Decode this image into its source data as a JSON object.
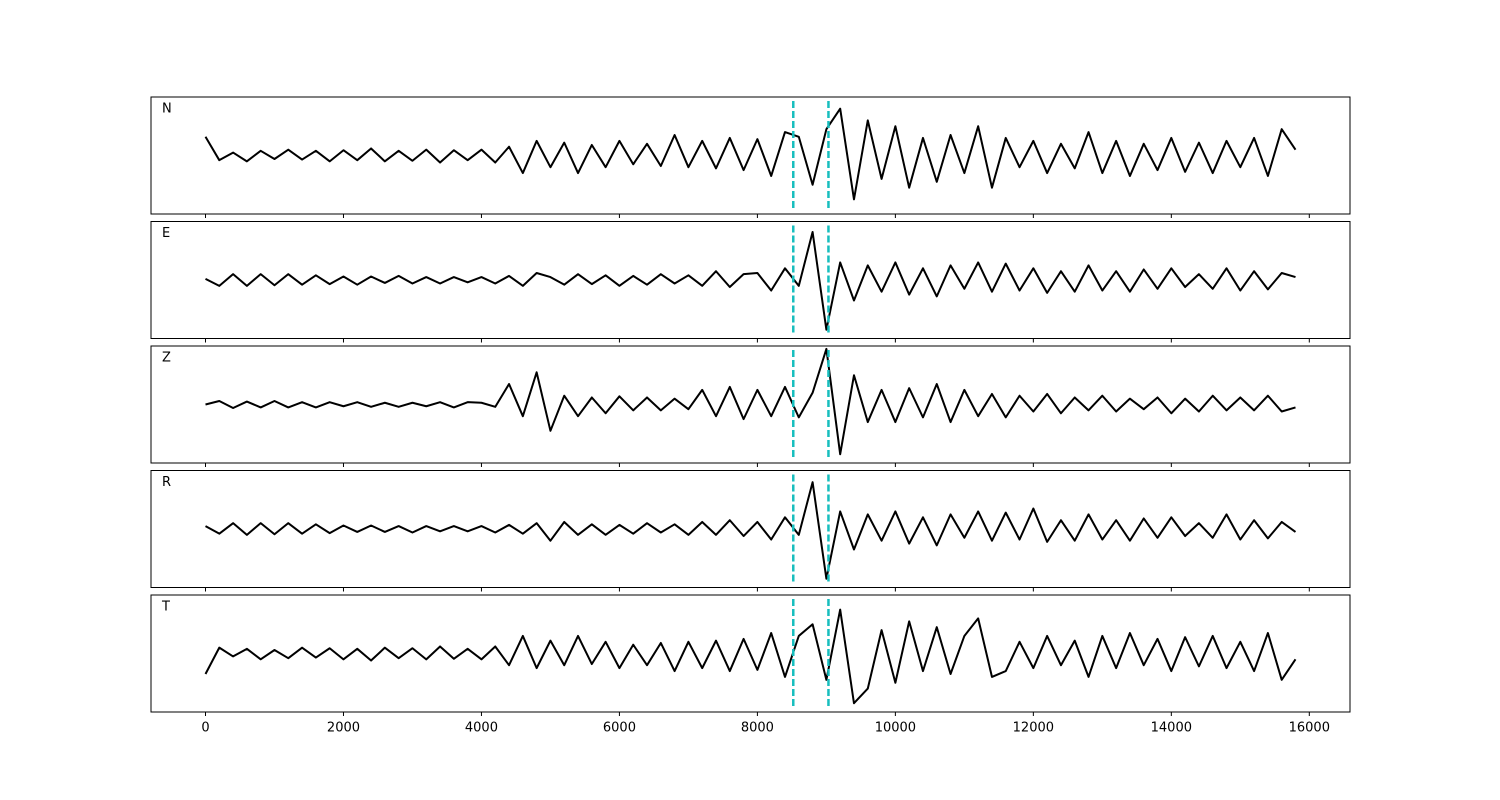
{
  "chart_data": {
    "type": "line",
    "layout": "stacked",
    "x": [
      0,
      200,
      400,
      600,
      800,
      1000,
      1200,
      1400,
      1600,
      1800,
      2000,
      2200,
      2400,
      2600,
      2800,
      3000,
      3200,
      3400,
      3600,
      3800,
      4000,
      4200,
      4400,
      4600,
      4800,
      5000,
      5200,
      5400,
      5600,
      5800,
      6000,
      6200,
      6400,
      6600,
      6800,
      7000,
      7200,
      7400,
      7600,
      7800,
      8000,
      8200,
      8400,
      8600,
      8800,
      9000,
      9200,
      9400,
      9600,
      9800,
      10000,
      10200,
      10400,
      10600,
      10800,
      11000,
      11200,
      11400,
      11600,
      11800,
      12000,
      12200,
      12400,
      12600,
      12800,
      13000,
      13200,
      13400,
      13600,
      13800,
      14000,
      14200,
      14400,
      14600,
      14800,
      15000,
      15200,
      15400,
      15600,
      15800
    ],
    "series": [
      {
        "name": "N",
        "color": "#000000",
        "values": [
          0.32,
          -0.08,
          0.05,
          -0.1,
          0.08,
          -0.06,
          0.1,
          -0.07,
          0.08,
          -0.1,
          0.09,
          -0.08,
          0.12,
          -0.1,
          0.08,
          -0.09,
          0.1,
          -0.12,
          0.09,
          -0.08,
          0.1,
          -0.12,
          0.15,
          -0.3,
          0.25,
          -0.2,
          0.22,
          -0.3,
          0.18,
          -0.2,
          0.25,
          -0.15,
          0.2,
          -0.18,
          0.35,
          -0.2,
          0.25,
          -0.22,
          0.3,
          -0.25,
          0.28,
          -0.35,
          0.4,
          0.32,
          -0.5,
          0.45,
          0.8,
          -0.75,
          0.6,
          -0.4,
          0.5,
          -0.55,
          0.3,
          -0.45,
          0.35,
          -0.3,
          0.5,
          -0.55,
          0.3,
          -0.2,
          0.25,
          -0.3,
          0.2,
          -0.22,
          0.4,
          -0.3,
          0.25,
          -0.35,
          0.2,
          -0.25,
          0.3,
          -0.28,
          0.22,
          -0.3,
          0.25,
          -0.2,
          0.3,
          -0.35,
          0.45,
          0.1
        ]
      },
      {
        "name": "E",
        "color": "#000000",
        "values": [
          0.02,
          -0.1,
          0.1,
          -0.1,
          0.1,
          -0.09,
          0.1,
          -0.08,
          0.08,
          -0.07,
          0.06,
          -0.08,
          0.06,
          -0.05,
          0.07,
          -0.06,
          0.05,
          -0.06,
          0.05,
          -0.04,
          0.05,
          -0.06,
          0.07,
          -0.1,
          0.12,
          0.05,
          -0.08,
          0.1,
          -0.07,
          0.08,
          -0.1,
          0.07,
          -0.08,
          0.1,
          -0.06,
          0.08,
          -0.1,
          0.15,
          -0.12,
          0.1,
          0.12,
          -0.18,
          0.2,
          -0.1,
          0.82,
          -0.85,
          0.3,
          -0.35,
          0.25,
          -0.2,
          0.3,
          -0.25,
          0.2,
          -0.28,
          0.25,
          -0.15,
          0.3,
          -0.2,
          0.28,
          -0.18,
          0.2,
          -0.22,
          0.15,
          -0.2,
          0.25,
          -0.18,
          0.15,
          -0.2,
          0.18,
          -0.15,
          0.2,
          -0.12,
          0.1,
          -0.15,
          0.2,
          -0.18,
          0.15,
          -0.16,
          0.12,
          0.05
        ]
      },
      {
        "name": "Z",
        "color": "#000000",
        "values": [
          0.0,
          0.06,
          -0.06,
          0.05,
          -0.05,
          0.06,
          -0.05,
          0.04,
          -0.05,
          0.04,
          -0.03,
          0.04,
          -0.04,
          0.03,
          -0.04,
          0.03,
          -0.03,
          0.04,
          -0.05,
          0.04,
          0.03,
          -0.04,
          0.35,
          -0.2,
          0.55,
          -0.45,
          0.15,
          -0.2,
          0.12,
          -0.15,
          0.14,
          -0.1,
          0.12,
          -0.1,
          0.1,
          -0.08,
          0.25,
          -0.2,
          0.3,
          -0.25,
          0.25,
          -0.2,
          0.3,
          -0.22,
          0.2,
          0.95,
          -0.85,
          0.5,
          -0.3,
          0.25,
          -0.3,
          0.28,
          -0.22,
          0.35,
          -0.3,
          0.25,
          -0.2,
          0.18,
          -0.22,
          0.15,
          -0.12,
          0.18,
          -0.15,
          0.12,
          -0.1,
          0.15,
          -0.12,
          0.1,
          -0.08,
          0.12,
          -0.15,
          0.1,
          -0.12,
          0.15,
          -0.1,
          0.12,
          -0.1,
          0.15,
          -0.12,
          -0.05
        ]
      },
      {
        "name": "R",
        "color": "#000000",
        "values": [
          0.05,
          -0.08,
          0.1,
          -0.1,
          0.1,
          -0.09,
          0.1,
          -0.08,
          0.08,
          -0.07,
          0.06,
          -0.05,
          0.06,
          -0.05,
          0.05,
          -0.06,
          0.05,
          -0.04,
          0.05,
          -0.04,
          0.05,
          -0.06,
          0.07,
          -0.08,
          0.1,
          -0.2,
          0.12,
          -0.1,
          0.08,
          -0.1,
          0.07,
          -0.08,
          0.1,
          -0.06,
          0.08,
          -0.1,
          0.12,
          -0.1,
          0.15,
          -0.12,
          0.12,
          -0.18,
          0.2,
          -0.1,
          0.8,
          -0.85,
          0.3,
          -0.35,
          0.25,
          -0.2,
          0.3,
          -0.25,
          0.2,
          -0.28,
          0.25,
          -0.15,
          0.3,
          -0.2,
          0.28,
          -0.18,
          0.35,
          -0.22,
          0.15,
          -0.2,
          0.25,
          -0.18,
          0.15,
          -0.2,
          0.18,
          -0.15,
          0.2,
          -0.12,
          0.1,
          -0.15,
          0.25,
          -0.18,
          0.15,
          -0.16,
          0.12,
          -0.05
        ]
      },
      {
        "name": "T",
        "color": "#000000",
        "values": [
          -0.35,
          0.1,
          -0.05,
          0.08,
          -0.1,
          0.06,
          -0.08,
          0.1,
          -0.07,
          0.09,
          -0.1,
          0.08,
          -0.12,
          0.1,
          -0.08,
          0.09,
          -0.1,
          0.12,
          -0.09,
          0.08,
          -0.1,
          0.12,
          -0.2,
          0.3,
          -0.25,
          0.22,
          -0.2,
          0.3,
          -0.18,
          0.2,
          -0.25,
          0.15,
          -0.2,
          0.18,
          -0.3,
          0.2,
          -0.25,
          0.22,
          -0.3,
          0.25,
          -0.28,
          0.35,
          -0.4,
          0.3,
          0.5,
          -0.45,
          0.75,
          -0.85,
          -0.6,
          0.4,
          -0.5,
          0.55,
          -0.3,
          0.45,
          -0.35,
          0.3,
          0.6,
          -0.4,
          -0.3,
          0.2,
          -0.25,
          0.3,
          -0.2,
          0.22,
          -0.4,
          0.3,
          -0.25,
          0.35,
          -0.2,
          0.25,
          -0.3,
          0.28,
          -0.22,
          0.3,
          -0.25,
          0.2,
          -0.3,
          0.35,
          -0.45,
          -0.1
        ]
      }
    ],
    "vlines": [
      8520,
      9030
    ],
    "vline_color": "#17bebe",
    "xlim": [
      -790,
      16590
    ],
    "xticks": [
      0,
      2000,
      4000,
      6000,
      8000,
      10000,
      12000,
      14000,
      16000
    ],
    "ylim": [
      -1,
      1
    ]
  }
}
